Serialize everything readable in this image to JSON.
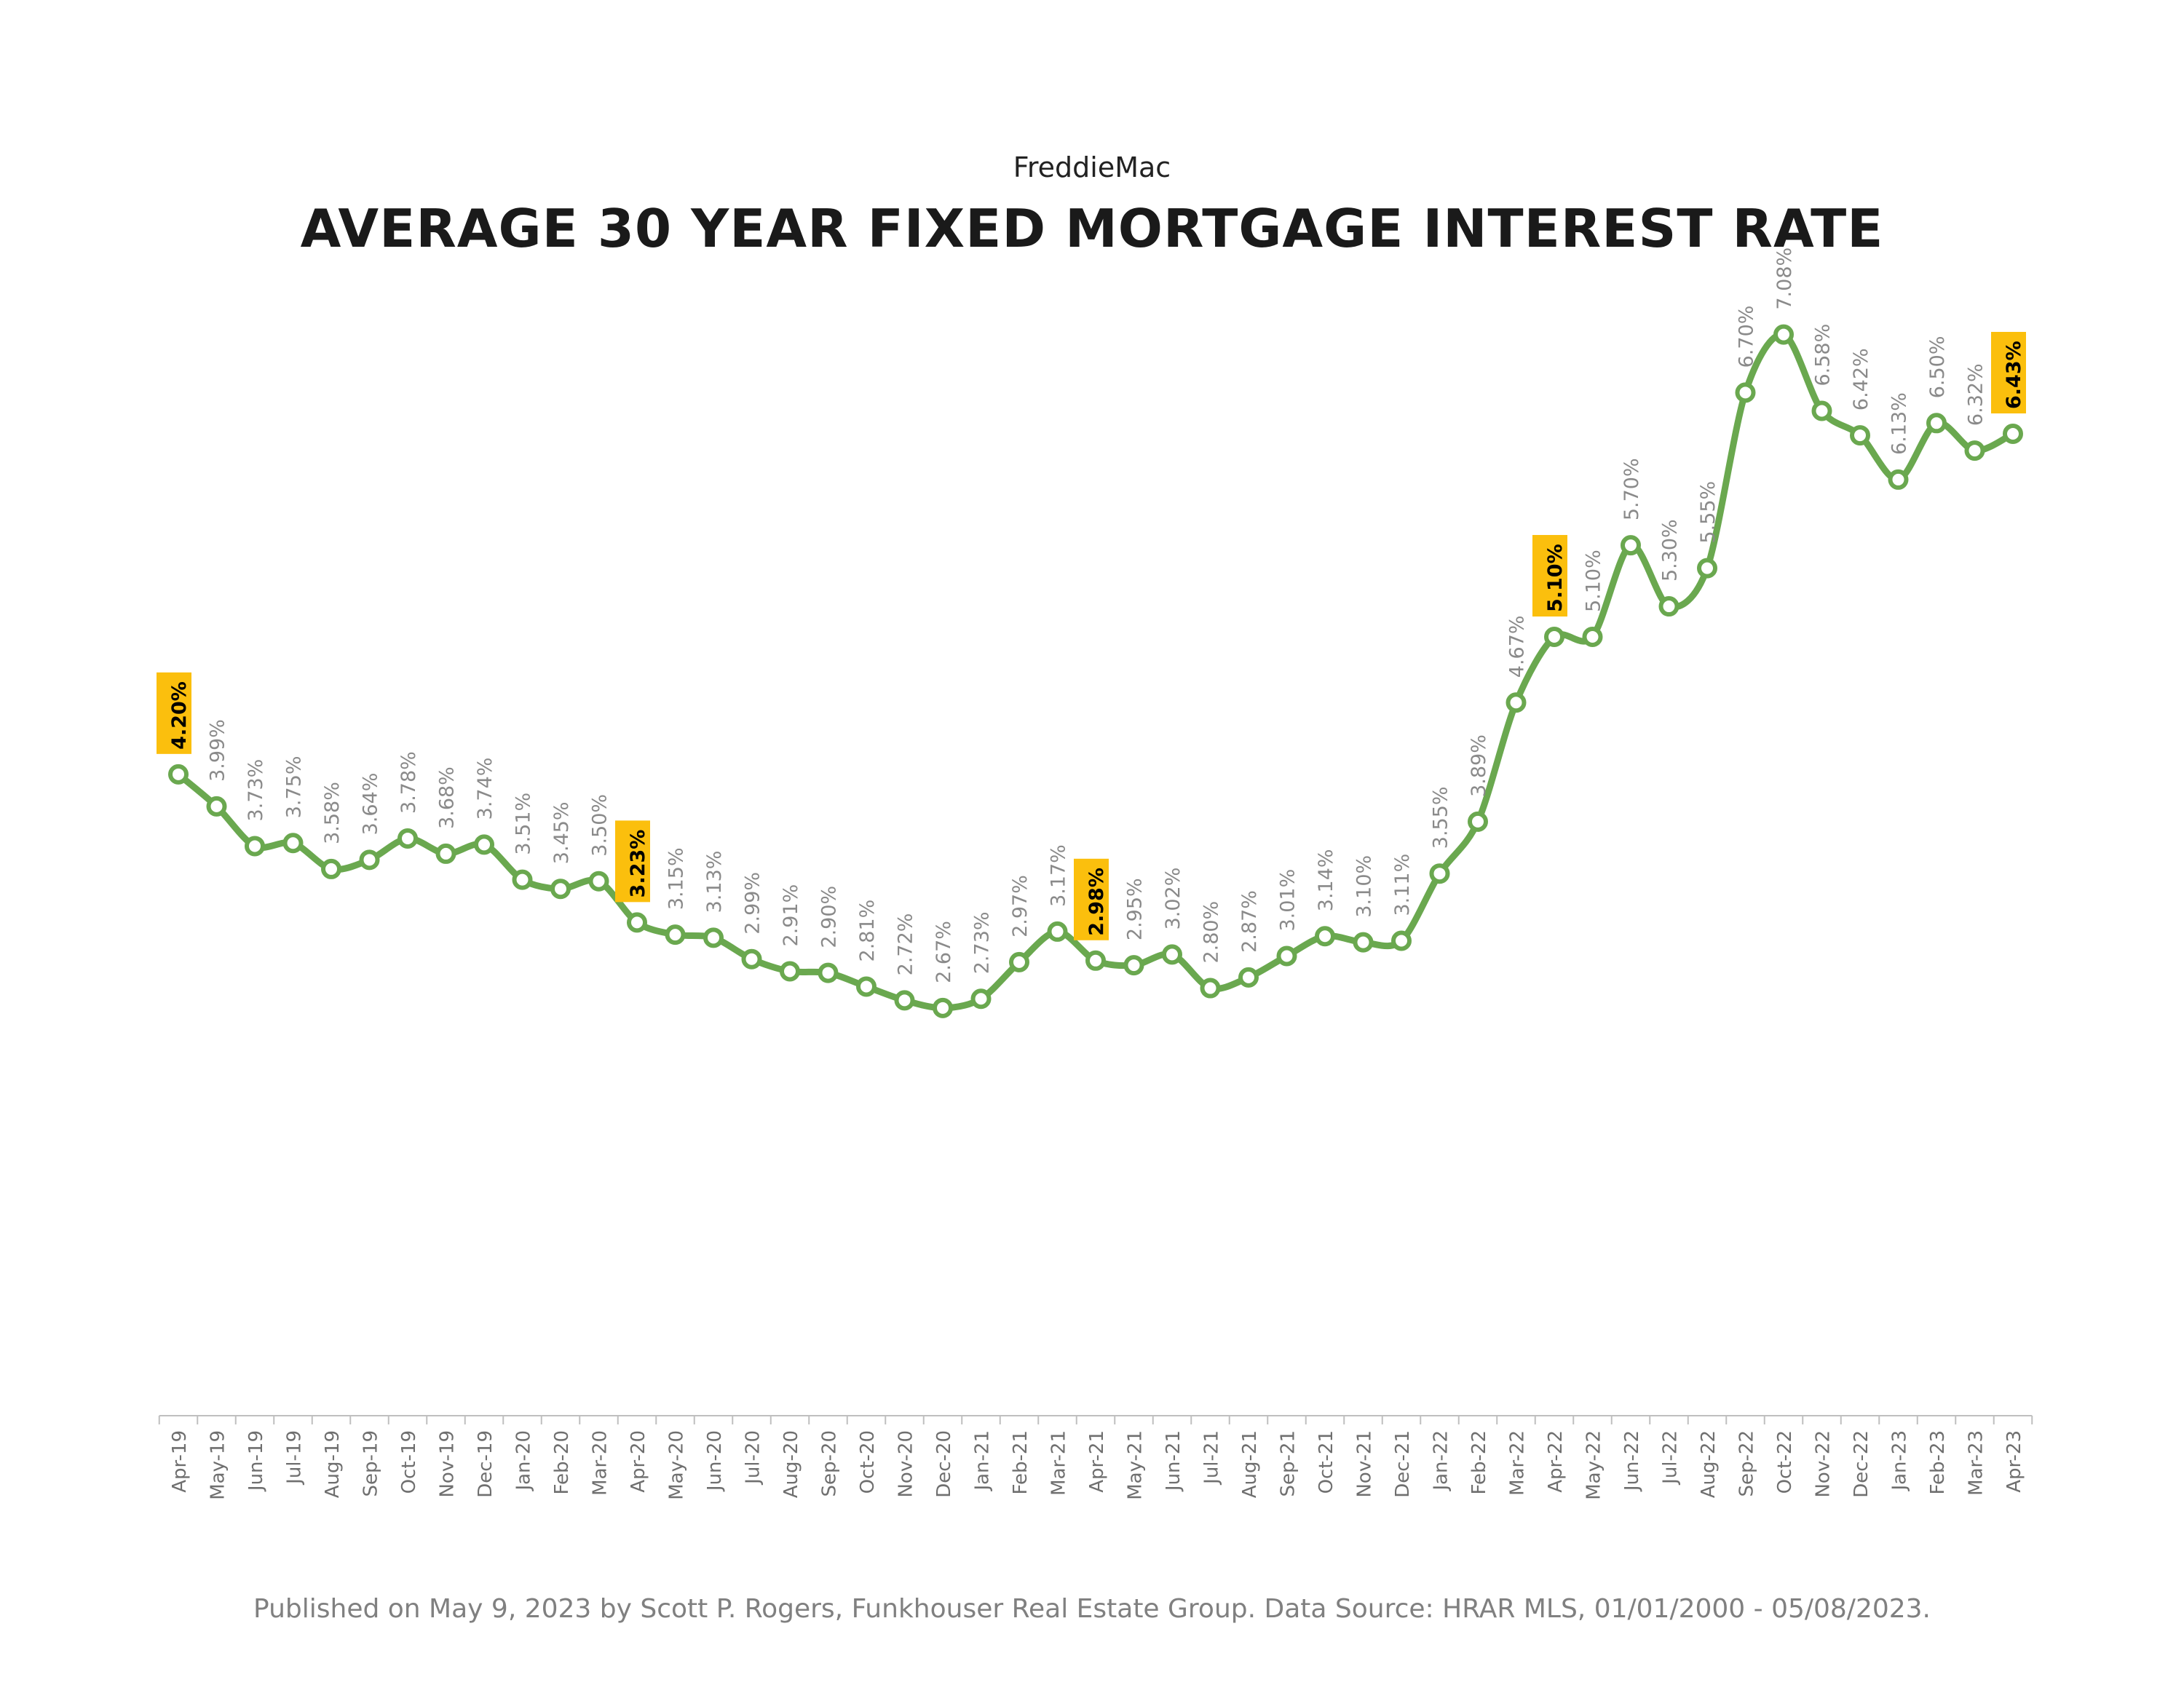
{
  "subtitle": "FreddieMac",
  "title": "AVERAGE 30 YEAR FIXED MORTGAGE INTEREST RATE",
  "footer": "Published on May 9, 2023 by Scott P. Rogers, Funkhouser Real Estate Group. Data Source: HRAR MLS, 01/01/2000 - 05/08/2023.",
  "colors": {
    "line": "#6aa84f",
    "highlight": "#fbbf0d",
    "label": "#8a8a8a",
    "highlight_text": "#000000",
    "axis": "#bfbfbf"
  },
  "chart_data": {
    "type": "line",
    "title": "AVERAGE 30 YEAR FIXED MORTGAGE INTEREST RATE",
    "xlabel": "",
    "ylabel": "",
    "ylim": [
      0,
      8
    ],
    "grid": false,
    "categories": [
      "Apr-19",
      "May-19",
      "Jun-19",
      "Jul-19",
      "Aug-19",
      "Sep-19",
      "Oct-19",
      "Nov-19",
      "Dec-19",
      "Jan-20",
      "Feb-20",
      "Mar-20",
      "Apr-20",
      "May-20",
      "Jun-20",
      "Jul-20",
      "Aug-20",
      "Sep-20",
      "Oct-20",
      "Nov-20",
      "Dec-20",
      "Jan-21",
      "Feb-21",
      "Mar-21",
      "Apr-21",
      "May-21",
      "Jun-21",
      "Jul-21",
      "Aug-21",
      "Sep-21",
      "Oct-21",
      "Nov-21",
      "Dec-21",
      "Jan-22",
      "Feb-22",
      "Mar-22",
      "Apr-22",
      "May-22",
      "Jun-22",
      "Jul-22",
      "Aug-22",
      "Sep-22",
      "Oct-22",
      "Nov-22",
      "Dec-22",
      "Jan-23",
      "Feb-23",
      "Mar-23",
      "Apr-23"
    ],
    "values": [
      4.2,
      3.99,
      3.73,
      3.75,
      3.58,
      3.64,
      3.78,
      3.68,
      3.74,
      3.51,
      3.45,
      3.5,
      3.23,
      3.15,
      3.13,
      2.99,
      2.91,
      2.9,
      2.81,
      2.72,
      2.67,
      2.73,
      2.97,
      3.17,
      2.98,
      2.95,
      3.02,
      2.8,
      2.87,
      3.01,
      3.14,
      3.1,
      3.11,
      3.55,
      3.89,
      4.67,
      5.1,
      5.1,
      5.7,
      5.3,
      5.55,
      6.7,
      7.08,
      6.58,
      6.42,
      6.13,
      6.5,
      6.32,
      6.43
    ],
    "data_labels": [
      "4.20%",
      "3.99%",
      "3.73%",
      "3.75%",
      "3.58%",
      "3.64%",
      "3.78%",
      "3.68%",
      "3.74%",
      "3.51%",
      "3.45%",
      "3.50%",
      "3.23%",
      "3.15%",
      "3.13%",
      "2.99%",
      "2.91%",
      "2.90%",
      "2.81%",
      "2.72%",
      "2.67%",
      "2.73%",
      "2.97%",
      "3.17%",
      "2.98%",
      "2.95%",
      "3.02%",
      "2.80%",
      "2.87%",
      "3.01%",
      "3.14%",
      "3.10%",
      "3.11%",
      "3.55%",
      "3.89%",
      "4.67%",
      "5.10%",
      "5.10%",
      "5.70%",
      "5.30%",
      "5.55%",
      "6.70%",
      "7.08%",
      "6.58%",
      "6.42%",
      "6.13%",
      "6.50%",
      "6.32%",
      "6.43%"
    ],
    "highlighted_indices": [
      0,
      12,
      24,
      36,
      48
    ]
  }
}
